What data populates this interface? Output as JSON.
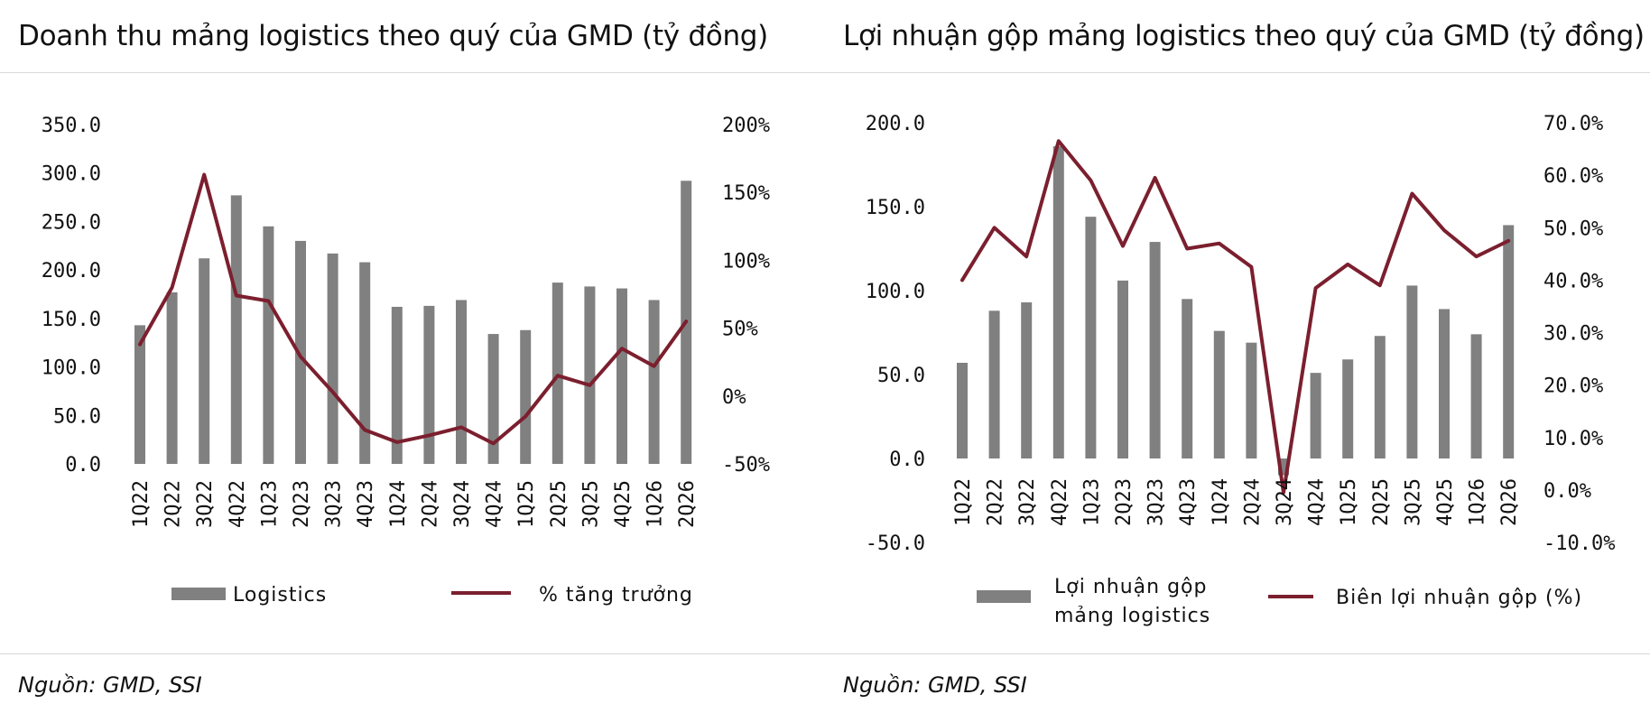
{
  "page": {
    "left_title": "Doanh thu mảng logistics theo quý của GMD (tỷ đồng)",
    "right_title": "Lợi nhuận gộp mảng logistics theo quý của GMD (tỷ đồng)",
    "left_source": "Nguồn: GMD, SSI",
    "right_source": "Nguồn: GMD, SSI"
  },
  "colors": {
    "bar": "#808080",
    "line": "#7b1f2e"
  },
  "chart_data": [
    {
      "type": "bar",
      "title": "Doanh thu mảng logistics theo quý của GMD (tỷ đồng)",
      "categories": [
        "1Q22",
        "2Q22",
        "3Q22",
        "4Q22",
        "1Q23",
        "2Q23",
        "3Q23",
        "4Q23",
        "1Q24",
        "2Q24",
        "3Q24",
        "4Q24",
        "1Q25",
        "2Q25",
        "3Q25",
        "4Q25",
        "1Q26",
        "2Q26"
      ],
      "series": [
        {
          "name": "Logistics",
          "type": "bar",
          "axis": "left",
          "values": [
            143,
            177,
            212,
            277,
            245,
            230,
            217,
            208,
            162,
            163,
            169,
            134,
            138,
            187,
            183,
            181,
            169,
            292
          ]
        },
        {
          "name": "% tăng trưởng",
          "type": "line",
          "axis": "right",
          "values": [
            38,
            80,
            163,
            74,
            70,
            29,
            3,
            -25,
            -34,
            -29,
            -23,
            -35,
            -15,
            15,
            8,
            35,
            22,
            55
          ]
        }
      ],
      "y_left": {
        "min": 0,
        "max": 350,
        "step": 50,
        "tick_labels": [
          "0.0",
          "50.0",
          "100.0",
          "150.0",
          "200.0",
          "250.0",
          "300.0",
          "350.0"
        ]
      },
      "y_right": {
        "min": -50,
        "max": 200,
        "step": 50,
        "tick_labels": [
          "-50%",
          "0%",
          "50%",
          "100%",
          "150%",
          "200%"
        ]
      },
      "legend": {
        "position": "bottom",
        "items": [
          "Logistics",
          "% tăng trưởng"
        ]
      },
      "grid": false
    },
    {
      "type": "bar",
      "title": "Lợi nhuận gộp mảng logistics theo quý của GMD (tỷ đồng)",
      "categories": [
        "1Q22",
        "2Q22",
        "3Q22",
        "4Q22",
        "1Q23",
        "2Q23",
        "3Q23",
        "4Q23",
        "1Q24",
        "2Q24",
        "3Q24",
        "4Q24",
        "1Q25",
        "2Q25",
        "3Q25",
        "4Q25",
        "1Q26",
        "2Q26"
      ],
      "series": [
        {
          "name": "Lợi nhuận gộp mảng logistics",
          "type": "bar",
          "axis": "left",
          "values": [
            57,
            88,
            93,
            186,
            144,
            106,
            129,
            95,
            76,
            69,
            -10,
            51,
            59,
            73,
            103,
            89,
            74,
            139
          ]
        },
        {
          "name": "Biên lợi nhuận gộp (%)",
          "type": "line",
          "axis": "right",
          "values": [
            40,
            50,
            44.5,
            66.5,
            59,
            46.5,
            59.5,
            46,
            47,
            42.5,
            -0.5,
            38.5,
            43,
            39,
            56.5,
            49.5,
            44.5,
            47.5
          ]
        }
      ],
      "y_left": {
        "min": -50,
        "max": 200,
        "step": 50,
        "tick_labels": [
          "-50.0",
          "0.0",
          "50.0",
          "100.0",
          "150.0",
          "200.0"
        ]
      },
      "y_right": {
        "min": -10,
        "max": 70,
        "step": 10,
        "tick_labels": [
          "-10.0%",
          "0.0%",
          "10.0%",
          "20.0%",
          "30.0%",
          "40.0%",
          "50.0%",
          "60.0%",
          "70.0%"
        ]
      },
      "legend": {
        "position": "bottom",
        "items": [
          "Lợi nhuận gộp mảng logistics",
          "Biên lợi nhuận gộp (%)"
        ],
        "bar_label_lines": [
          "Lợi nhuận gộp",
          "mảng logistics"
        ]
      },
      "grid": false
    }
  ]
}
